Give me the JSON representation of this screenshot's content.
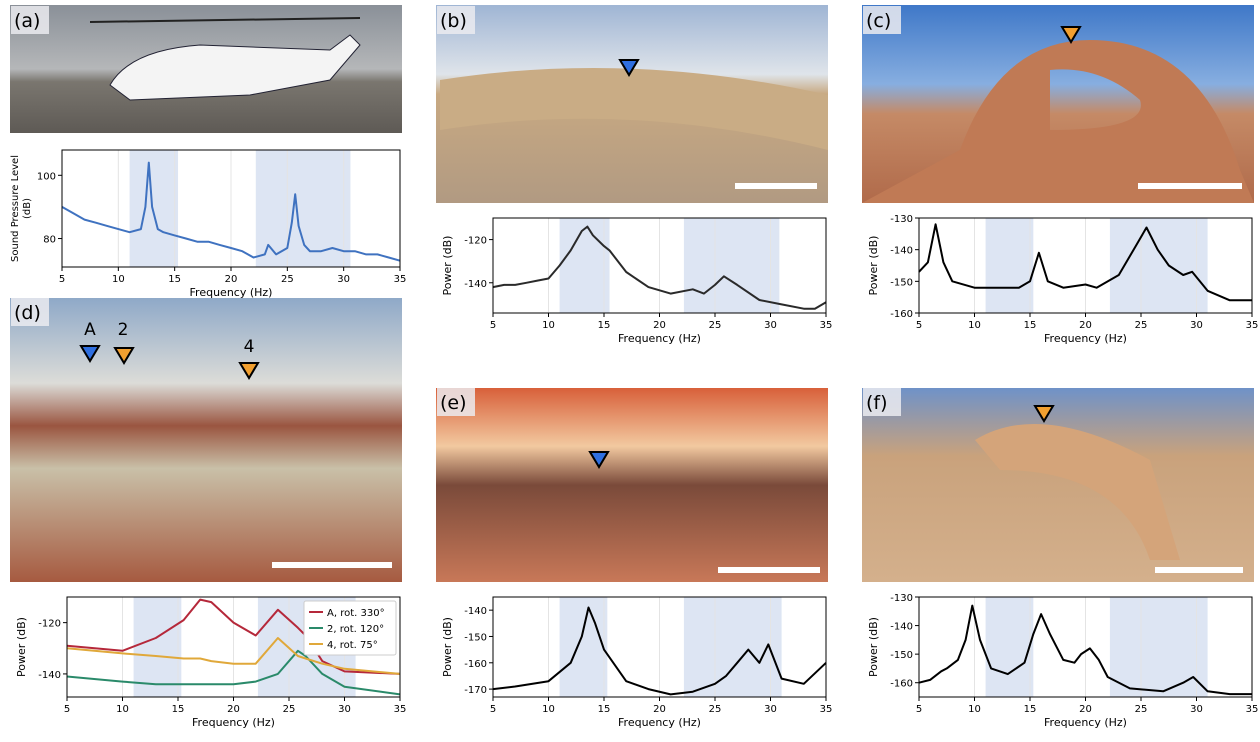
{
  "chart_data": [
    {
      "type": "line",
      "label": "(a)",
      "xlabel": "Frequency (Hz)",
      "ylabel": [
        "Sound Pressure Level",
        "(dB)"
      ],
      "xlim": [
        5,
        35
      ],
      "xticks": [
        5,
        10,
        15,
        20,
        25,
        30,
        35
      ],
      "ylim": [
        71,
        108
      ],
      "yticks": [
        80,
        100
      ],
      "grid": true,
      "bands": [
        [
          11,
          15.3
        ],
        [
          22.2,
          30.6
        ]
      ],
      "x": [
        5,
        6,
        7,
        8,
        9,
        10,
        11,
        12,
        12.4,
        12.7,
        13,
        13.5,
        14,
        15,
        16,
        17,
        18,
        19,
        20,
        21,
        22,
        23,
        23.3,
        24,
        25,
        25.4,
        25.7,
        26,
        26.5,
        27,
        28,
        29,
        30,
        31,
        32,
        33,
        34,
        35
      ],
      "series": [
        {
          "color": "#3f72c0",
          "values": [
            90,
            88,
            86,
            85,
            84,
            83,
            82,
            83,
            90,
            104,
            90,
            83,
            82,
            81,
            80,
            79,
            79,
            78,
            77,
            76,
            74,
            75,
            78,
            75,
            77,
            85,
            94,
            84,
            78,
            76,
            76,
            77,
            76,
            76,
            75,
            75,
            74,
            73
          ]
        }
      ]
    },
    {
      "type": "line",
      "label": "(b)",
      "xlabel": "Frequency (Hz)",
      "ylabel": "Power (dB)",
      "xlim": [
        5,
        35
      ],
      "xticks": [
        5,
        10,
        15,
        20,
        25,
        30,
        35
      ],
      "ylim": [
        -154,
        -110
      ],
      "yticks": [
        -140,
        -120
      ],
      "grid": true,
      "bands": [
        [
          11,
          15.5
        ],
        [
          22.2,
          30.8
        ]
      ],
      "x": [
        5,
        6,
        7,
        8,
        9,
        10,
        11,
        12,
        13,
        13.5,
        14,
        15,
        15.5,
        17,
        19,
        21,
        23,
        24,
        25,
        25.8,
        27,
        29,
        31,
        33,
        34,
        35
      ],
      "series": [
        {
          "color": "#2a2a2a",
          "values": [
            -142,
            -141,
            -141,
            -140,
            -139,
            -138,
            -132,
            -125,
            -116,
            -114,
            -118,
            -123,
            -125,
            -135,
            -142,
            -145,
            -143,
            -145,
            -141,
            -137,
            -141,
            -148,
            -150,
            -152,
            -152,
            -149
          ]
        }
      ]
    },
    {
      "type": "line",
      "label": "(c)",
      "xlabel": "Frequency (Hz)",
      "ylabel": "Power (dB)",
      "xlim": [
        5,
        35
      ],
      "xticks": [
        5,
        10,
        15,
        20,
        25,
        30,
        35
      ],
      "ylim": [
        -160,
        -130
      ],
      "yticks": [
        -160,
        -150,
        -140,
        -130
      ],
      "grid": true,
      "bands": [
        [
          11,
          15.3
        ],
        [
          22.2,
          31
        ]
      ],
      "x": [
        5,
        5.8,
        6.5,
        7.2,
        8,
        10,
        12,
        14,
        15,
        15.8,
        16.6,
        18,
        20,
        21,
        23,
        24.5,
        25.5,
        26.5,
        27.5,
        28.8,
        29.6,
        31,
        33,
        35
      ],
      "series": [
        {
          "color": "#000000",
          "values": [
            -147,
            -144,
            -132,
            -144,
            -150,
            -152,
            -152,
            -152,
            -150,
            -141,
            -150,
            -152,
            -151,
            -152,
            -148,
            -139,
            -133,
            -140,
            -145,
            -148,
            -147,
            -153,
            -156,
            -156
          ]
        }
      ]
    },
    {
      "type": "line",
      "label": "(d)",
      "annotations": [
        "A",
        "2",
        "4"
      ],
      "xlabel": "Frequency (Hz)",
      "ylabel": "Power (dB)",
      "xlim": [
        5,
        35
      ],
      "xticks": [
        5,
        10,
        15,
        20,
        25,
        30,
        35
      ],
      "ylim": [
        -149,
        -110
      ],
      "yticks": [
        -140,
        -120
      ],
      "grid": true,
      "bands": [
        [
          11,
          15.3
        ],
        [
          22.2,
          31
        ]
      ],
      "legend": "upper right",
      "x": [
        5,
        10,
        13,
        15.5,
        17,
        18,
        20,
        22,
        24,
        25.8,
        26.5,
        28,
        30,
        35
      ],
      "series": [
        {
          "name": "A, rot. 330°",
          "color": "#b5283a",
          "values": [
            -129,
            -131,
            -126,
            -119,
            -111,
            -112,
            -120,
            -125,
            -115,
            -122,
            -125,
            -135,
            -139,
            -140
          ]
        },
        {
          "name": "2, rot. 120°",
          "color": "#2a8a6a",
          "values": [
            -141,
            -143,
            -144,
            -144,
            -144,
            -144,
            -144,
            -143,
            -140,
            -131,
            -133,
            -140,
            -145,
            -148
          ]
        },
        {
          "name": "4, rot. 75°",
          "color": "#e0a83a",
          "values": [
            -130,
            -132,
            -133,
            -134,
            -134,
            -135,
            -136,
            -136,
            -126,
            -133,
            -134,
            -136,
            -138,
            -140
          ]
        }
      ]
    },
    {
      "type": "line",
      "label": "(e)",
      "xlabel": "Frequency (Hz)",
      "ylabel": "Power (dB)",
      "xlim": [
        5,
        35
      ],
      "xticks": [
        5,
        10,
        15,
        20,
        25,
        30,
        35
      ],
      "ylim": [
        -173,
        -135
      ],
      "yticks": [
        -170,
        -160,
        -150,
        -140
      ],
      "grid": true,
      "bands": [
        [
          11,
          15.3
        ],
        [
          22.2,
          31
        ]
      ],
      "x": [
        5,
        7,
        10,
        12,
        13,
        13.6,
        14.2,
        15,
        17,
        19,
        21,
        23,
        25,
        26,
        27,
        28,
        29,
        29.8,
        31,
        33,
        35
      ],
      "series": [
        {
          "color": "#000000",
          "values": [
            -170,
            -169,
            -167,
            -160,
            -150,
            -139,
            -145,
            -155,
            -167,
            -170,
            -172,
            -171,
            -168,
            -165,
            -160,
            -155,
            -160,
            -153,
            -166,
            -168,
            -160
          ]
        }
      ]
    },
    {
      "type": "line",
      "label": "(f)",
      "xlabel": "Frequency (Hz)",
      "ylabel": "Power (dB)",
      "xlim": [
        5,
        35
      ],
      "xticks": [
        5,
        10,
        15,
        20,
        25,
        30,
        35
      ],
      "ylim": [
        -165,
        -130
      ],
      "yticks": [
        -160,
        -150,
        -140,
        -130
      ],
      "grid": true,
      "bands": [
        [
          11,
          15.3
        ],
        [
          22.2,
          31
        ]
      ],
      "x": [
        5,
        6,
        7,
        7.5,
        8.5,
        9.2,
        9.8,
        10.5,
        11.5,
        13,
        14.5,
        15.3,
        16,
        16.8,
        18,
        19,
        19.6,
        20.4,
        21.2,
        22,
        24,
        27,
        28.8,
        29.7,
        31,
        33,
        35
      ],
      "series": [
        {
          "color": "#000000",
          "values": [
            -160,
            -159,
            -156,
            -155,
            -152,
            -145,
            -133,
            -145,
            -155,
            -157,
            -153,
            -143,
            -136,
            -143,
            -152,
            -153,
            -150,
            -148,
            -152,
            -158,
            -162,
            -163,
            -160,
            -158,
            -163,
            -164,
            -164
          ]
        }
      ]
    }
  ]
}
